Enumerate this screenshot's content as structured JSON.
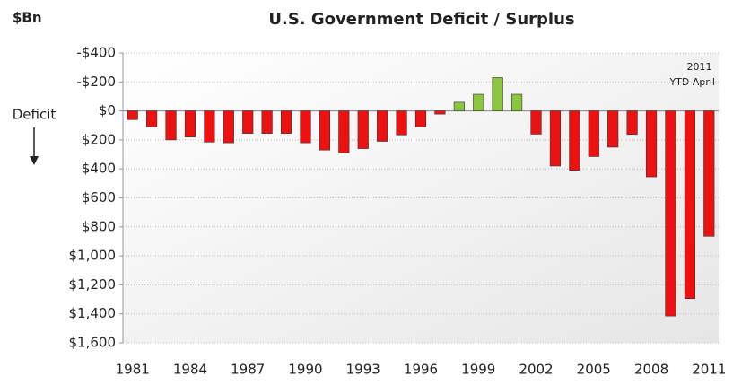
{
  "chart_data": {
    "type": "bar",
    "title": "U.S. Government Deficit / Surplus",
    "y_label": "$Bn",
    "side_label": "Deficit",
    "annotation": [
      "2011",
      "YTD April"
    ],
    "categories": [
      "1981",
      null,
      null,
      "1984",
      null,
      null,
      "1987",
      null,
      null,
      "1990",
      null,
      null,
      "1993",
      null,
      null,
      "1996",
      null,
      null,
      "1999",
      null,
      null,
      "2002",
      null,
      null,
      "2005",
      null,
      null,
      "2008",
      null,
      null,
      "2011"
    ],
    "values": [
      60,
      110,
      200,
      180,
      215,
      220,
      155,
      155,
      155,
      220,
      270,
      290,
      260,
      210,
      165,
      110,
      22,
      -60,
      -115,
      -230,
      -115,
      160,
      380,
      410,
      315,
      250,
      162,
      455,
      1415,
      1295,
      865
    ],
    "color": "#ee1111",
    "surplus_color": "#8cc63f",
    "y_inverted": true,
    "ylim": [
      -400,
      1600
    ],
    "yticks": [
      {
        "value": -400,
        "label": "-$400"
      },
      {
        "value": -200,
        "label": "-$200"
      },
      {
        "value": 0,
        "label": "$0"
      },
      {
        "value": 200,
        "label": "$200"
      },
      {
        "value": 400,
        "label": "$400"
      },
      {
        "value": 600,
        "label": "$600"
      },
      {
        "value": 800,
        "label": "$800"
      },
      {
        "value": 1000,
        "label": "$1,000"
      },
      {
        "value": 1200,
        "label": "$1,200"
      },
      {
        "value": 1400,
        "label": "$1,400"
      },
      {
        "value": 1600,
        "label": "$1,600"
      }
    ],
    "grid": true
  }
}
